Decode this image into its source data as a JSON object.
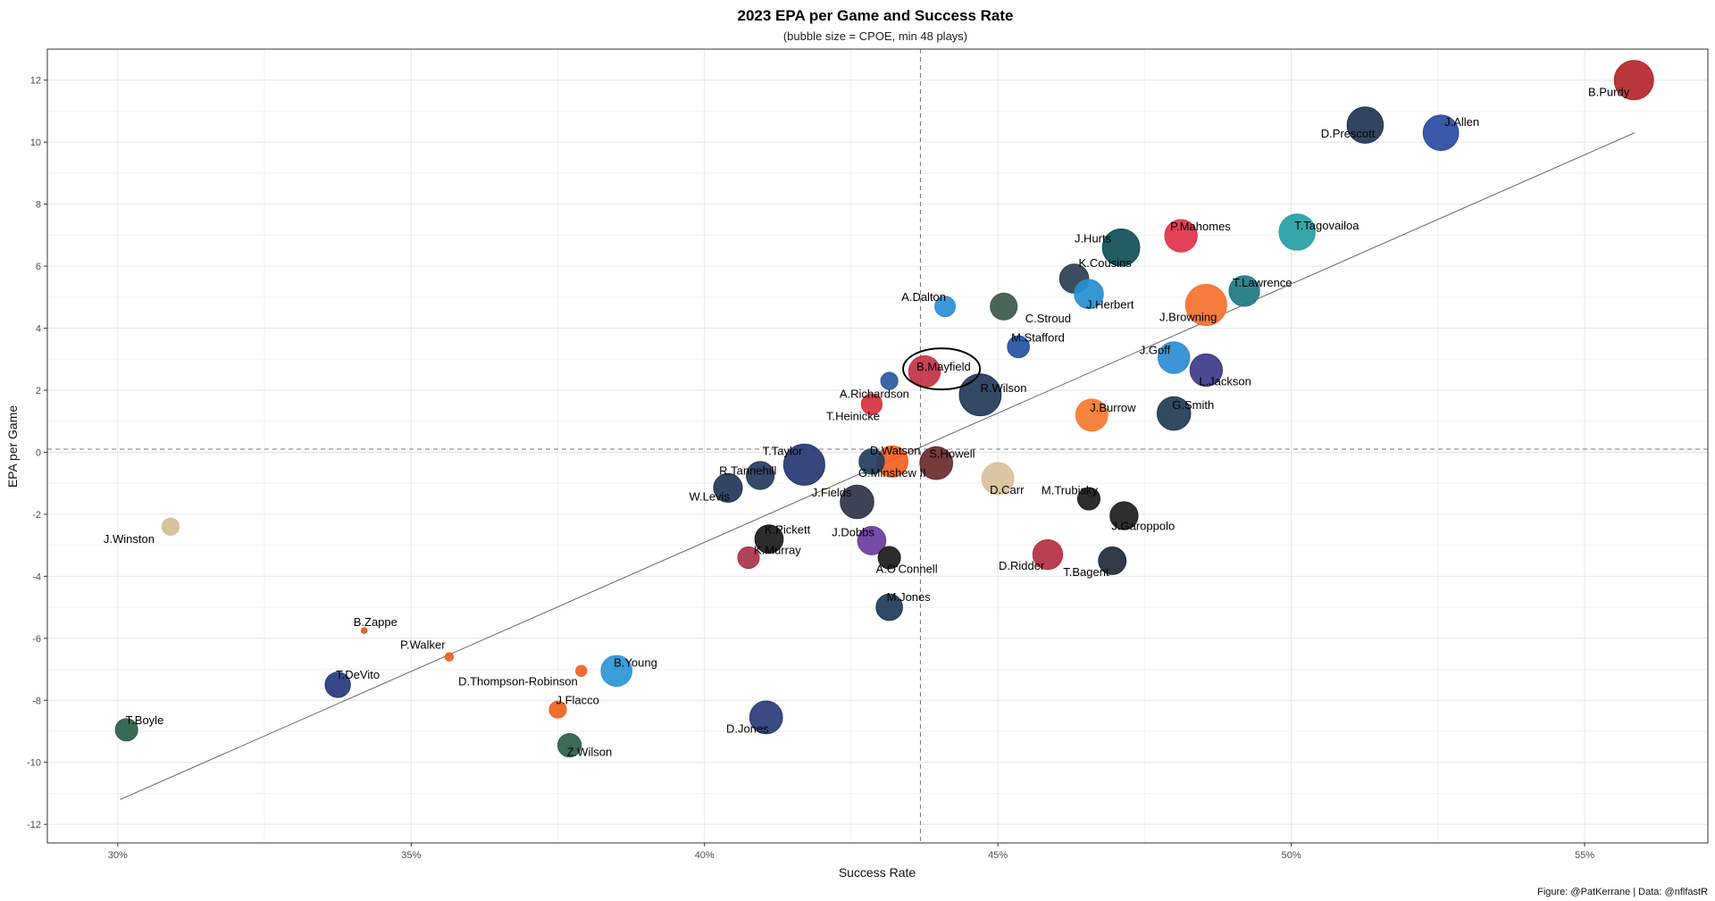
{
  "chart_data": {
    "type": "scatter",
    "title": "2023 EPA per Game and Success Rate",
    "subtitle": "(bubble size = CPOE, min 48 plays)",
    "xlabel": "Success Rate",
    "ylabel": "EPA per Game",
    "caption": "Figure: @PatKerrane | Data: @nflfastR",
    "xlim": [
      0.288,
      0.571
    ],
    "ylim": [
      -12.6,
      13.0
    ],
    "xticks": [
      0.3,
      0.35,
      0.4,
      0.45,
      0.5,
      0.55
    ],
    "xtick_labels": [
      "30%",
      "35%",
      "40%",
      "45%",
      "50%",
      "55%"
    ],
    "yticks": [
      -12,
      -10,
      -8,
      -6,
      -4,
      -2,
      0,
      2,
      4,
      6,
      8,
      10,
      12
    ],
    "ytick_labels": [
      "-12",
      "-10",
      "-8",
      "-6",
      "-4",
      "-2",
      "0",
      "2",
      "4",
      "6",
      "8",
      "10",
      "12"
    ],
    "grid": true,
    "reference_lines": {
      "vline_x": 0.4368,
      "hline_y": 0.1
    },
    "trend_line": {
      "x": [
        0.3004,
        0.5585
      ],
      "y": [
        -11.2,
        10.3
      ]
    },
    "highlight": {
      "player": "B.Mayfield",
      "shape": "ellipse"
    },
    "points": [
      {
        "label": "B.Purdy",
        "x": 0.5584,
        "y": 12.0,
        "size": 9.5,
        "color": "#B3262B"
      },
      {
        "label": "J.Allen",
        "x": 0.5255,
        "y": 10.3,
        "size": 8.5,
        "color": "#2A4A9E"
      },
      {
        "label": "D.Prescott",
        "x": 0.5126,
        "y": 10.55,
        "size": 8.7,
        "color": "#1F3553"
      },
      {
        "label": "T.Tagovailoa",
        "x": 0.501,
        "y": 7.1,
        "size": 8.7,
        "color": "#24A0A3"
      },
      {
        "label": "P.Mahomes",
        "x": 0.4812,
        "y": 6.98,
        "size": 7.7,
        "color": "#E0324B"
      },
      {
        "label": "J.Hurts",
        "x": 0.471,
        "y": 6.6,
        "size": 9.0,
        "color": "#0E4F55"
      },
      {
        "label": "K.Cousins",
        "x": 0.463,
        "y": 5.6,
        "size": 6.8,
        "color": "#2B3E51"
      },
      {
        "label": "J.Herbert",
        "x": 0.4655,
        "y": 5.1,
        "size": 6.8,
        "color": "#268ED0"
      },
      {
        "label": "C.Stroud",
        "x": 0.451,
        "y": 4.7,
        "size": 6.2,
        "color": "#3B5849"
      },
      {
        "label": "T.Lawrence",
        "x": 0.492,
        "y": 5.2,
        "size": 7.2,
        "color": "#1E7A85"
      },
      {
        "label": "J.Browning",
        "x": 0.4855,
        "y": 4.75,
        "size": 10.0,
        "color": "#F5702E"
      },
      {
        "label": "A.Dalton",
        "x": 0.441,
        "y": 4.7,
        "size": 4.5,
        "color": "#2A8ED6"
      },
      {
        "label": "M.Stafford",
        "x": 0.4535,
        "y": 3.4,
        "size": 4.9,
        "color": "#2351A3"
      },
      {
        "label": "J.Goff",
        "x": 0.48,
        "y": 3.05,
        "size": 7.5,
        "color": "#2D8CD3"
      },
      {
        "label": "L.Jackson",
        "x": 0.4855,
        "y": 2.65,
        "size": 7.7,
        "color": "#3D3A8A"
      },
      {
        "label": "B.Mayfield",
        "x": 0.4375,
        "y": 2.6,
        "size": 7.5,
        "color": "#C23345"
      },
      {
        "label": "",
        "x": 0.4315,
        "y": 2.3,
        "size": 3.6,
        "color": "#2A5A9E"
      },
      {
        "label": "R.Wilson",
        "x": 0.447,
        "y": 1.85,
        "size": 10.2,
        "color": "#213857"
      },
      {
        "label": "A.Richardson",
        "x": 0.4285,
        "y": 1.55,
        "size": 4.6,
        "color": "#D6323B"
      },
      {
        "label": "J.Burrow",
        "x": 0.466,
        "y": 1.2,
        "size": 7.6,
        "color": "#F57A2F"
      },
      {
        "label": "G.Smith",
        "x": 0.48,
        "y": 1.25,
        "size": 8.0,
        "color": "#203A55"
      },
      {
        "label": "D.Watson",
        "x": 0.4285,
        "y": -0.3,
        "size": 5.8,
        "color": "#233C5F"
      },
      {
        "label": "G.Minshew II",
        "x": 0.432,
        "y": -0.3,
        "size": 7.4,
        "color": "#F6601D"
      },
      {
        "label": "S.Howell",
        "x": 0.4395,
        "y": -0.35,
        "size": 7.8,
        "color": "#6B2A2A"
      },
      {
        "label": "T.Taylor",
        "x": 0.417,
        "y": -0.4,
        "size": 10.0,
        "color": "#273673"
      },
      {
        "label": "D.Carr",
        "x": 0.45,
        "y": -0.85,
        "size": 7.6,
        "color": "#D9C09A"
      },
      {
        "label": "R.Tannehill",
        "x": 0.4095,
        "y": -0.75,
        "size": 6.5,
        "color": "#243B5C"
      },
      {
        "label": "W.Levis",
        "x": 0.404,
        "y": -1.15,
        "size": 6.7,
        "color": "#1F3657"
      },
      {
        "label": "J.Fields",
        "x": 0.426,
        "y": -1.6,
        "size": 8.0,
        "color": "#2B3346"
      },
      {
        "label": "M.Trubisky",
        "x": 0.4655,
        "y": -1.5,
        "size": 5.0,
        "color": "#1B1B1B"
      },
      {
        "label": "J.Garoppolo",
        "x": 0.4715,
        "y": -2.05,
        "size": 6.5,
        "color": "#1C1C1C"
      },
      {
        "label": "K.Pickett",
        "x": 0.411,
        "y": -2.8,
        "size": 6.6,
        "color": "#1A1A1A"
      },
      {
        "label": "J.Dobbs",
        "x": 0.4285,
        "y": -2.85,
        "size": 6.6,
        "color": "#6A3BA0"
      },
      {
        "label": "K.Murray",
        "x": 0.4075,
        "y": -3.4,
        "size": 4.8,
        "color": "#A8334A"
      },
      {
        "label": "A.O'Connell",
        "x": 0.4315,
        "y": -3.4,
        "size": 5.0,
        "color": "#1A1A1A"
      },
      {
        "label": "D.Ridder",
        "x": 0.4585,
        "y": -3.3,
        "size": 7.0,
        "color": "#B52F44"
      },
      {
        "label": "T.Bagent",
        "x": 0.4695,
        "y": -3.5,
        "size": 6.4,
        "color": "#202A38"
      },
      {
        "label": "M.Jones",
        "x": 0.4315,
        "y": -5.0,
        "size": 6.1,
        "color": "#1F3A5A"
      },
      {
        "label": "J.Winston",
        "x": 0.309,
        "y": -2.4,
        "size": 3.6,
        "color": "#D4BD95"
      },
      {
        "label": "B.Zappe",
        "x": 0.342,
        "y": -5.75,
        "size": 0.6,
        "color": "#E15A24"
      },
      {
        "label": "P.Walker",
        "x": 0.3565,
        "y": -6.6,
        "size": 1.3,
        "color": "#F06220"
      },
      {
        "label": "D.Thompson-Robinson",
        "x": 0.379,
        "y": -7.05,
        "size": 2.0,
        "color": "#F06220"
      },
      {
        "label": "B.Young",
        "x": 0.385,
        "y": -7.05,
        "size": 7.3,
        "color": "#2D95D6"
      },
      {
        "label": "T.DeVito",
        "x": 0.3375,
        "y": -7.5,
        "size": 5.8,
        "color": "#243A7C"
      },
      {
        "label": "J.Flacco",
        "x": 0.375,
        "y": -8.3,
        "size": 3.6,
        "color": "#F06220"
      },
      {
        "label": "T.Boyle",
        "x": 0.3015,
        "y": -8.95,
        "size": 5.0,
        "color": "#275E45"
      },
      {
        "label": "Z.Wilson",
        "x": 0.377,
        "y": -9.45,
        "size": 5.3,
        "color": "#2A5E45"
      },
      {
        "label": "D.Jones",
        "x": 0.4105,
        "y": -8.55,
        "size": 7.8,
        "color": "#2A3A7A"
      }
    ]
  }
}
